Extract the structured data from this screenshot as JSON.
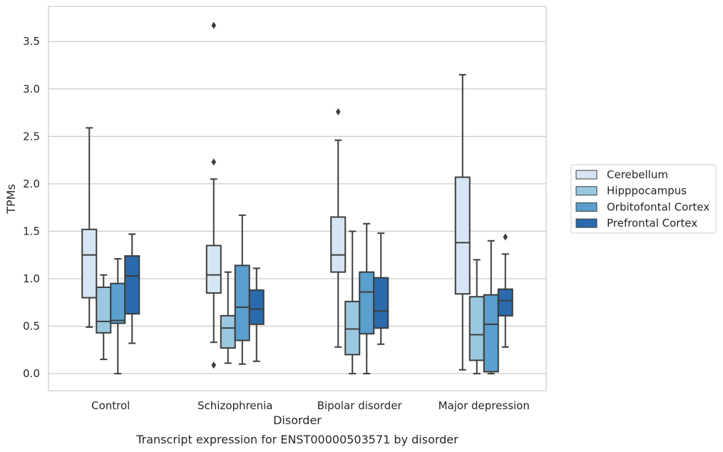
{
  "chart_data": {
    "type": "box",
    "title": "",
    "caption": "Transcript expression for ENST00000503571 by disorder",
    "xlabel": "Disorder",
    "ylabel": "TPMs",
    "ylim": [
      -0.18,
      3.87
    ],
    "yticks": [
      "0.0",
      "0.5",
      "1.0",
      "1.5",
      "2.0",
      "2.5",
      "3.0",
      "3.5"
    ],
    "ytick_values": [
      0,
      0.5,
      1.0,
      1.5,
      2.0,
      2.5,
      3.0,
      3.5
    ],
    "grid": true,
    "legend_position": "right",
    "categories": [
      "Control",
      "Schizophrenia",
      "Bipolar disorder",
      "Major depression"
    ],
    "series": [
      {
        "name": "Cerebellum",
        "color": "#d6e5f3",
        "boxes": [
          {
            "whisker_low": 0.49,
            "q1": 0.8,
            "median": 1.25,
            "q3": 1.52,
            "whisker_high": 2.59,
            "outliers": []
          },
          {
            "whisker_low": 0.33,
            "q1": 0.85,
            "median": 1.04,
            "q3": 1.35,
            "whisker_high": 2.05,
            "outliers": [
              0.09,
              2.23,
              3.67
            ]
          },
          {
            "whisker_low": 0.28,
            "q1": 1.07,
            "median": 1.25,
            "q3": 1.65,
            "whisker_high": 2.46,
            "outliers": [
              2.76
            ]
          },
          {
            "whisker_low": 0.04,
            "q1": 0.84,
            "median": 1.38,
            "q3": 2.07,
            "whisker_high": 3.15,
            "outliers": []
          }
        ]
      },
      {
        "name": "Hipppocampus",
        "color": "#9ac8e0",
        "boxes": [
          {
            "whisker_low": 0.15,
            "q1": 0.43,
            "median": 0.55,
            "q3": 0.91,
            "whisker_high": 1.04,
            "outliers": []
          },
          {
            "whisker_low": 0.11,
            "q1": 0.27,
            "median": 0.48,
            "q3": 0.61,
            "whisker_high": 1.07,
            "outliers": []
          },
          {
            "whisker_low": 0.0,
            "q1": 0.2,
            "median": 0.47,
            "q3": 0.76,
            "whisker_high": 1.5,
            "outliers": []
          },
          {
            "whisker_low": 0.0,
            "q1": 0.14,
            "median": 0.41,
            "q3": 0.81,
            "whisker_high": 1.2,
            "outliers": []
          }
        ]
      },
      {
        "name": "Orbitofontal Cortex",
        "color": "#5a9fcd",
        "boxes": [
          {
            "whisker_low": 0.0,
            "q1": 0.53,
            "median": 0.56,
            "q3": 0.95,
            "whisker_high": 1.21,
            "outliers": []
          },
          {
            "whisker_low": 0.1,
            "q1": 0.35,
            "median": 0.7,
            "q3": 1.14,
            "whisker_high": 1.67,
            "outliers": []
          },
          {
            "whisker_low": 0.0,
            "q1": 0.42,
            "median": 0.86,
            "q3": 1.07,
            "whisker_high": 1.58,
            "outliers": []
          },
          {
            "whisker_low": 0.0,
            "q1": 0.02,
            "median": 0.52,
            "q3": 0.83,
            "whisker_high": 1.4,
            "outliers": []
          }
        ]
      },
      {
        "name": "Prefrontal Cortex",
        "color": "#2a6aad",
        "boxes": [
          {
            "whisker_low": 0.32,
            "q1": 0.63,
            "median": 1.03,
            "q3": 1.24,
            "whisker_high": 1.47,
            "outliers": []
          },
          {
            "whisker_low": 0.13,
            "q1": 0.52,
            "median": 0.68,
            "q3": 0.88,
            "whisker_high": 1.11,
            "outliers": []
          },
          {
            "whisker_low": 0.31,
            "q1": 0.48,
            "median": 0.66,
            "q3": 1.01,
            "whisker_high": 1.48,
            "outliers": []
          },
          {
            "whisker_low": 0.28,
            "q1": 0.61,
            "median": 0.77,
            "q3": 0.89,
            "whisker_high": 1.26,
            "outliers": [
              1.44
            ]
          }
        ]
      }
    ]
  }
}
